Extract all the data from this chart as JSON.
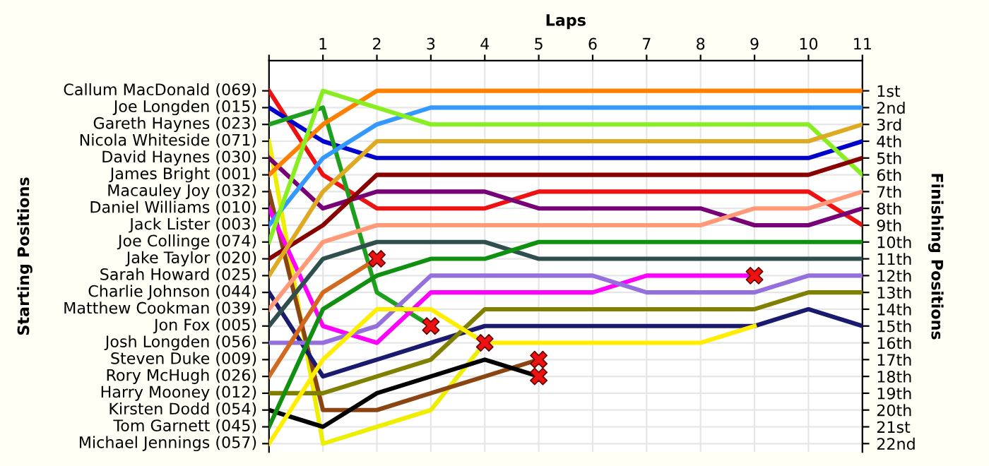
{
  "chart_data": {
    "type": "line",
    "xlabel": "Laps",
    "ylabel": "Finishing Positions",
    "x": [
      0,
      1,
      2,
      3,
      4,
      5,
      6,
      7,
      8,
      9,
      10,
      11
    ],
    "xlim": [
      0,
      11
    ],
    "xticks": [
      {
        "value": 0,
        "label": null
      },
      1,
      2,
      3,
      4,
      5,
      6,
      7,
      8,
      9,
      10,
      11
    ],
    "ylim": [
      22.5,
      -0.8
    ],
    "annotations": [
      "Starting Positions",
      "Callum MacDonald (069)",
      "Joe Longden (015)",
      "Gareth Haynes (023)",
      "Nicola Whiteside (071)",
      "David Haynes (030)",
      "James Bright (001)",
      "Macauley Joy (032)",
      "Daniel Williams (010)",
      "Jack Lister (003)",
      "Joe Collinge (074)",
      "Jake Taylor (020)",
      "Sarah Howard (025)",
      "Charlie Johnson (044)",
      "Matthew Cookman (039)",
      "Jon Fox (005)",
      "Josh Longden (056)",
      "Steven Duke (009)",
      "Rory McHugh (026)",
      "Harry Mooney (012)",
      "Kirsten Dodd (054)",
      "Tom Garnett (045)",
      "Michael Jennings (057)"
    ],
    "yticks": [
      {
        "value": 1,
        "label": "1st"
      },
      {
        "value": 2,
        "label": "2nd"
      },
      {
        "value": 3,
        "label": "3rd"
      },
      {
        "value": 4,
        "label": "4th"
      },
      {
        "value": 5,
        "label": "5th"
      },
      {
        "value": 6,
        "label": "6th"
      },
      {
        "value": 7,
        "label": "7th"
      },
      {
        "value": 8,
        "label": "8th"
      },
      {
        "value": 9,
        "label": "9th"
      },
      {
        "value": 10,
        "label": "10th"
      },
      {
        "value": 11,
        "label": "11th"
      },
      {
        "value": 12,
        "label": "12th"
      },
      {
        "value": 13,
        "label": "13th"
      },
      {
        "value": 14,
        "label": "14th"
      },
      {
        "value": 15,
        "label": "15th"
      },
      {
        "value": 16,
        "label": "16th"
      },
      {
        "value": 17,
        "label": "17th"
      },
      {
        "value": 18,
        "label": "18th"
      },
      {
        "value": 19,
        "label": "19th"
      },
      {
        "value": 20,
        "label": "20th"
      },
      {
        "value": 21,
        "label": "21st"
      },
      {
        "value": 22,
        "label": "22nd"
      }
    ],
    "grid": true,
    "legend": false,
    "series": [
      {
        "color": "#ee1111",
        "values": [
          1,
          6,
          8,
          8,
          8,
          7,
          7,
          7,
          7,
          7,
          7,
          9
        ]
      },
      {
        "color": "#0000cc",
        "values": [
          2,
          4,
          5,
          5,
          5,
          5,
          5,
          5,
          5,
          5,
          5,
          4
        ]
      },
      {
        "color": "#1ea01e",
        "values": [
          3,
          2,
          13,
          15,
          null,
          null,
          null,
          null,
          null,
          null,
          null,
          null
        ]
      },
      {
        "color": "#eeee00",
        "values": [
          4,
          22,
          21,
          20,
          16,
          null,
          null,
          null,
          null,
          null,
          null,
          null
        ]
      },
      {
        "color": "#770077",
        "values": [
          5,
          8,
          7,
          7,
          7,
          8,
          8,
          8,
          8,
          9,
          9,
          8
        ]
      },
      {
        "color": "#ff7f00",
        "values": [
          6,
          3,
          1,
          1,
          1,
          1,
          1,
          1,
          1,
          1,
          1,
          1
        ]
      },
      {
        "color": "#8b4513",
        "values": [
          7,
          20,
          20,
          19,
          18,
          17,
          null,
          null,
          null,
          null,
          null,
          null
        ]
      },
      {
        "color": "#ff00ff",
        "values": [
          8,
          15,
          16,
          13,
          13,
          13,
          13,
          12,
          12,
          12,
          null,
          null
        ]
      },
      {
        "color": "#3399ff",
        "values": [
          9,
          5,
          3,
          2,
          2,
          2,
          2,
          2,
          2,
          2,
          2,
          2
        ]
      },
      {
        "color": "#88ee22",
        "values": [
          10,
          1,
          2,
          3,
          3,
          3,
          3,
          3,
          3,
          3,
          3,
          6
        ]
      },
      {
        "color": "#880000",
        "values": [
          11,
          9,
          6,
          6,
          6,
          6,
          6,
          6,
          6,
          6,
          6,
          5
        ]
      },
      {
        "color": "#ddaa22",
        "values": [
          12,
          7,
          4,
          4,
          4,
          4,
          4,
          4,
          4,
          4,
          4,
          3
        ]
      },
      {
        "color": "#1a1a6e",
        "values": [
          13,
          18,
          17,
          16,
          15,
          15,
          15,
          15,
          15,
          15,
          14,
          15
        ]
      },
      {
        "color": "#ff9977",
        "values": [
          14,
          10,
          9,
          9,
          9,
          9,
          9,
          9,
          9,
          8,
          8,
          7
        ]
      },
      {
        "color": "#2f4f4f",
        "values": [
          15,
          11,
          10,
          10,
          10,
          11,
          11,
          11,
          11,
          11,
          11,
          11
        ]
      },
      {
        "color": "#9370db",
        "values": [
          16,
          16,
          15,
          12,
          12,
          12,
          12,
          13,
          13,
          13,
          12,
          12
        ]
      },
      {
        "color": "#d2691e",
        "values": [
          18,
          13,
          11,
          null,
          null,
          null,
          null,
          null,
          null,
          null,
          null,
          null
        ]
      },
      {
        "color": "#808000",
        "values": [
          19,
          19,
          18,
          17,
          14,
          14,
          14,
          14,
          14,
          14,
          13,
          13
        ]
      },
      {
        "color": "#000000",
        "values": [
          20,
          21,
          19,
          18,
          17,
          18,
          null,
          null,
          null,
          null,
          null,
          null
        ]
      },
      {
        "color": "#109010",
        "values": [
          21,
          14,
          12,
          11,
          11,
          10,
          10,
          10,
          10,
          10,
          10,
          10
        ]
      },
      {
        "color": "#ffee00",
        "values": [
          22,
          17,
          14,
          14,
          16,
          16,
          16,
          16,
          16,
          15,
          null,
          null
        ]
      },
      {
        "type": "scatter",
        "marker": "cross",
        "color": "#ee1111",
        "x": [
          2,
          3,
          4,
          5,
          5,
          9
        ],
        "values": [
          11,
          15,
          16,
          17,
          18,
          12
        ]
      }
    ]
  }
}
